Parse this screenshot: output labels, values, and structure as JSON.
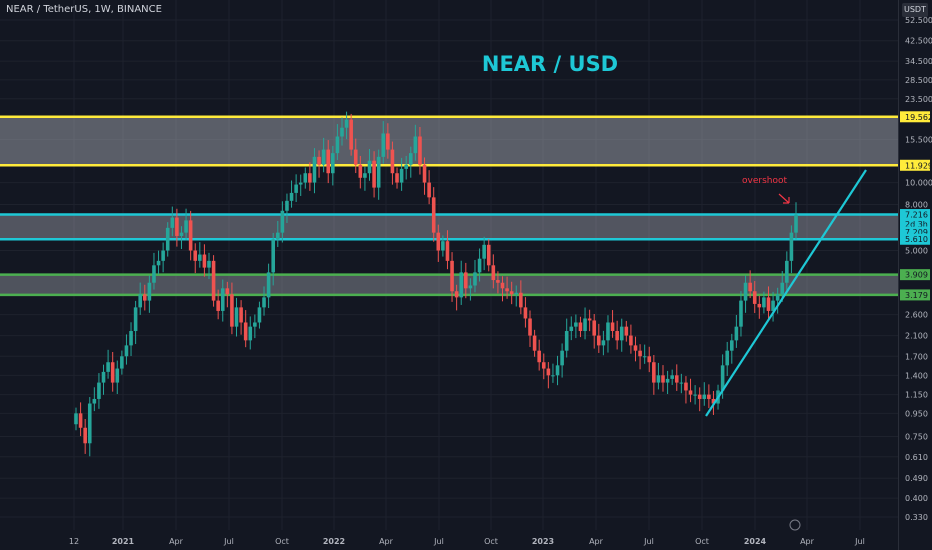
{
  "legend": {
    "symbol_text": "NEAR / TetherUS, 1W, BINANCE"
  },
  "currency_badge": "USDT",
  "chart_data": {
    "type": "candlestick",
    "title": "NEAR / USD",
    "y_scale": "log",
    "ylim": [
      0.3,
      60
    ],
    "price_labels": [
      "52.500",
      "42.500",
      "34.500",
      "28.500",
      "23.500",
      "19.562",
      "15.500",
      "11.929",
      "10.000",
      "8.000",
      "7.216",
      "2d 3h",
      "7.209",
      "5.610",
      "5.000",
      "3.909",
      "3.179",
      "2.600",
      "2.100",
      "1.700",
      "1.400",
      "1.150",
      "0.950",
      "0.750",
      "0.610",
      "0.490",
      "0.400",
      "0.330"
    ],
    "time_labels": [
      "12",
      "2021",
      "Apr",
      "Jul",
      "Oct",
      "2022",
      "Apr",
      "Jul",
      "Oct",
      "2023",
      "Apr",
      "Jul",
      "Oct",
      "2024",
      "Apr",
      "Jul"
    ],
    "zones": [
      {
        "name": "resistance-zone",
        "low": 11.929,
        "high": 19.562,
        "color": "#ffeb3b"
      },
      {
        "name": "breakout-zone",
        "low": 5.61,
        "high": 7.216,
        "color": "#1ec8d6"
      },
      {
        "name": "support-zone",
        "low": 3.179,
        "high": 3.909,
        "color": "#4caf50"
      }
    ],
    "current_price": 7.209,
    "countdown": "2d 3h",
    "annotation": "overshoot",
    "candles_weekly_close": [
      0.95,
      0.82,
      0.7,
      1.05,
      1.1,
      1.3,
      1.45,
      1.6,
      1.3,
      1.5,
      1.7,
      1.9,
      2.2,
      2.8,
      3.2,
      3.0,
      3.6,
      4.3,
      4.5,
      5.0,
      6.3,
      7.0,
      5.8,
      6.0,
      6.8,
      5.0,
      4.5,
      4.8,
      4.2,
      4.5,
      3.0,
      2.7,
      3.4,
      3.2,
      2.3,
      2.8,
      2.4,
      2.0,
      2.3,
      2.4,
      2.8,
      3.1,
      4.0,
      5.6,
      6.0,
      7.5,
      8.3,
      9.0,
      9.8,
      10.0,
      11.0,
      10.0,
      13.0,
      12.0,
      14.0,
      11.0,
      13.5,
      16.0,
      17.5,
      19.0,
      14.0,
      12.0,
      10.5,
      11.0,
      12.5,
      9.5,
      13.0,
      16.5,
      14.0,
      11.0,
      10.0,
      11.5,
      12.0,
      13.5,
      16.0,
      12.0,
      10.0,
      8.6,
      6.0,
      5.0,
      5.5,
      4.5,
      3.3,
      3.1,
      4.0,
      3.4,
      3.5,
      4.0,
      4.6,
      5.3,
      4.3,
      3.7,
      3.6,
      3.4,
      3.3,
      3.2,
      3.25,
      2.8,
      2.5,
      2.1,
      1.8,
      1.6,
      1.5,
      1.4,
      1.4,
      1.55,
      1.8,
      2.2,
      2.3,
      2.4,
      2.2,
      2.5,
      2.45,
      2.1,
      1.9,
      2.0,
      2.4,
      2.2,
      2.0,
      2.3,
      2.1,
      1.9,
      1.8,
      1.7,
      1.7,
      1.6,
      1.3,
      1.4,
      1.3,
      1.35,
      1.4,
      1.3,
      1.3,
      1.2,
      1.15,
      1.15,
      1.1,
      1.15,
      1.1,
      1.05,
      1.2,
      1.55,
      1.8,
      2.0,
      2.3,
      3.0,
      3.6,
      3.3,
      2.9,
      2.8,
      3.1,
      2.7,
      3.0,
      3.2,
      3.6,
      4.5,
      6.0,
      7.21
    ]
  }
}
